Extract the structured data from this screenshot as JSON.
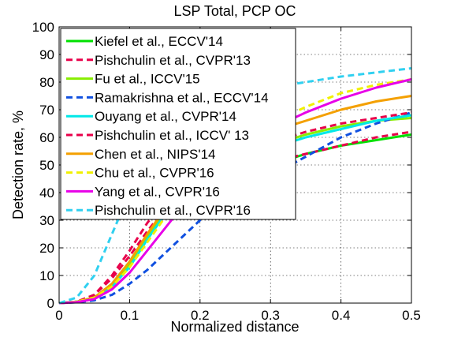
{
  "chart_data": {
    "type": "line",
    "title": "LSP Total, PCP OC",
    "xlabel": "Normalized distance",
    "ylabel": "Detection rate, %",
    "xlim": [
      0,
      0.5
    ],
    "ylim": [
      0,
      100
    ],
    "xticks": [
      "0",
      "0.1",
      "0.2",
      "0.3",
      "0.4",
      "0.5"
    ],
    "yticks": [
      "0",
      "10",
      "20",
      "30",
      "40",
      "50",
      "60",
      "70",
      "80",
      "90",
      "100"
    ],
    "grid": true,
    "legend_position": "top-left",
    "series": [
      {
        "name": "Kiefel et al., ECCV'14",
        "color": "#00e000",
        "dash": "solid",
        "x": [
          0,
          0.025,
          0.05,
          0.075,
          0.1,
          0.125,
          0.15,
          0.175,
          0.2,
          0.25,
          0.3,
          0.35,
          0.4,
          0.45,
          0.5
        ],
        "y": [
          0,
          0.5,
          2,
          7,
          15,
          25,
          33,
          38,
          42,
          47,
          50,
          54,
          57,
          59,
          61
        ]
      },
      {
        "name": "Pishchulin et al., CVPR'13",
        "color": "#e8004a",
        "dash": "dashed",
        "x": [
          0,
          0.025,
          0.05,
          0.075,
          0.1,
          0.125,
          0.15,
          0.175,
          0.2,
          0.25,
          0.3,
          0.35,
          0.4,
          0.45,
          0.5
        ],
        "y": [
          0,
          0.5,
          3,
          9,
          17,
          26,
          34,
          39,
          43,
          48,
          51,
          54,
          57,
          60,
          62
        ]
      },
      {
        "name": "Fu et al., ICCV'15",
        "color": "#88ee00",
        "dash": "solid",
        "x": [
          0,
          0.025,
          0.05,
          0.075,
          0.1,
          0.125,
          0.15,
          0.175,
          0.2,
          0.25,
          0.3,
          0.35,
          0.4,
          0.45,
          0.5
        ],
        "y": [
          0,
          0.5,
          2,
          6,
          14,
          24,
          33,
          40,
          45,
          52,
          57,
          61,
          64,
          66,
          67
        ]
      },
      {
        "name": "Ramakrishna et al., ECCV'14",
        "color": "#1050e0",
        "dash": "dashed",
        "x": [
          0,
          0.025,
          0.05,
          0.075,
          0.1,
          0.125,
          0.15,
          0.175,
          0.2,
          0.25,
          0.3,
          0.35,
          0.4,
          0.45,
          0.5
        ],
        "y": [
          0,
          0.3,
          1,
          3,
          7,
          12,
          18,
          24,
          30,
          38,
          46,
          53,
          60,
          65,
          69
        ]
      },
      {
        "name": "Ouyang et al., CVPR'14",
        "color": "#00e8e8",
        "dash": "solid",
        "x": [
          0,
          0.025,
          0.05,
          0.075,
          0.1,
          0.125,
          0.15,
          0.175,
          0.2,
          0.25,
          0.3,
          0.35,
          0.4,
          0.45,
          0.5
        ],
        "y": [
          0,
          0.5,
          2,
          6,
          13,
          23,
          32,
          39,
          44,
          51,
          56,
          60,
          63,
          66,
          68
        ]
      },
      {
        "name": "Pishchulin et al., ICCV' 13",
        "color": "#e8004a",
        "dash": "dashed",
        "x": [
          0,
          0.025,
          0.05,
          0.075,
          0.1,
          0.125,
          0.15,
          0.175,
          0.2,
          0.25,
          0.3,
          0.35,
          0.4,
          0.45,
          0.5
        ],
        "y": [
          0,
          0.5,
          3,
          10,
          19,
          29,
          37,
          43,
          47,
          54,
          58,
          62,
          65,
          67,
          69
        ]
      },
      {
        "name": "Chen et al., NIPS'14",
        "color": "#f4a000",
        "dash": "solid",
        "x": [
          0,
          0.025,
          0.05,
          0.075,
          0.1,
          0.125,
          0.15,
          0.175,
          0.2,
          0.25,
          0.3,
          0.35,
          0.4,
          0.45,
          0.5
        ],
        "y": [
          0,
          0.5,
          2,
          7,
          15,
          25,
          34,
          41,
          47,
          56,
          62,
          66,
          70,
          73,
          75
        ]
      },
      {
        "name": "Chu et al., CVPR'16",
        "color": "#f0f000",
        "dash": "dashed",
        "x": [
          0,
          0.025,
          0.05,
          0.075,
          0.1,
          0.125,
          0.15,
          0.175,
          0.2,
          0.25,
          0.3,
          0.35,
          0.4,
          0.45,
          0.5
        ],
        "y": [
          0,
          0.5,
          2,
          6,
          13,
          22,
          31,
          39,
          46,
          57,
          65,
          71,
          76,
          79,
          81
        ]
      },
      {
        "name": "Yang et al., CVPR'16",
        "color": "#e800e8",
        "dash": "solid",
        "x": [
          0,
          0.025,
          0.05,
          0.075,
          0.1,
          0.125,
          0.15,
          0.175,
          0.2,
          0.25,
          0.3,
          0.35,
          0.4,
          0.45,
          0.5
        ],
        "y": [
          0,
          0.3,
          1.5,
          5,
          11,
          19,
          27,
          35,
          42,
          54,
          63,
          69,
          74,
          78,
          81
        ]
      },
      {
        "name": "Pishchulin et al., CVPR'16",
        "color": "#30d0f0",
        "dash": "dashed",
        "x": [
          0,
          0.025,
          0.05,
          0.075,
          0.1,
          0.125,
          0.15,
          0.175,
          0.2,
          0.25,
          0.3,
          0.35,
          0.4,
          0.45,
          0.5
        ],
        "y": [
          0,
          2,
          10,
          25,
          40,
          52,
          60,
          66,
          70,
          75,
          78,
          80,
          82,
          83.5,
          85
        ]
      }
    ]
  }
}
